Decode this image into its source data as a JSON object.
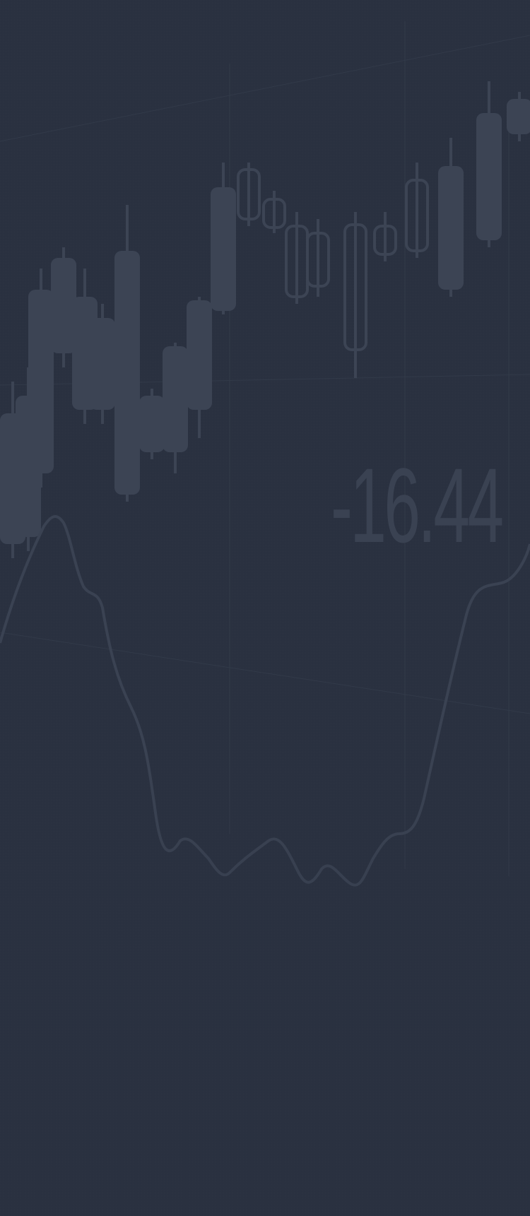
{
  "background": {
    "base_color": "#2a3140",
    "grid_color": "#323a49",
    "candle_color": "#3c4454",
    "line_color": "#3a4252",
    "readout_text": "-16.44"
  }
}
